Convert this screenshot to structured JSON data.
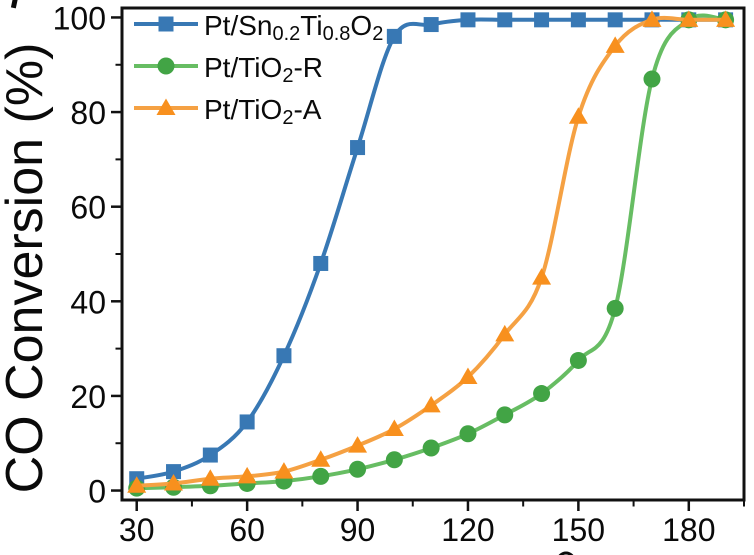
{
  "figure": {
    "y_axis_title": "CO Conversion (%)",
    "background": "#ffffff",
    "axis_color": "#111111"
  },
  "chart_data": {
    "type": "line",
    "title": "",
    "xlabel": "",
    "ylabel": "CO Conversion (%)",
    "x": [
      30,
      40,
      50,
      60,
      70,
      80,
      90,
      100,
      110,
      120,
      130,
      140,
      150,
      160,
      170,
      180,
      190
    ],
    "series": [
      {
        "plain_name": "Pt/Sn0.2Ti0.8O2",
        "label_segments": [
          {
            "t": "Pt/Sn"
          },
          {
            "t": "0.2",
            "sub": true
          },
          {
            "t": "Ti"
          },
          {
            "t": "0.8",
            "sub": true
          },
          {
            "t": "O"
          },
          {
            "t": "2",
            "sub": true
          }
        ],
        "marker": "square",
        "marker_color": "#3878B4",
        "line_color": "#3878B4",
        "values": [
          2.5,
          4,
          7.5,
          14.5,
          28.5,
          48,
          72.5,
          96,
          98.5,
          99.5,
          99.5,
          99.5,
          99.5,
          99.5,
          99.5,
          99.5,
          99.5
        ]
      },
      {
        "plain_name": "Pt/TiO2-R",
        "label_segments": [
          {
            "t": "Pt/TiO"
          },
          {
            "t": "2",
            "sub": true
          },
          {
            "t": "-R"
          }
        ],
        "marker": "circle",
        "marker_color": "#42A445",
        "line_color": "#67BD63",
        "values": [
          0.5,
          0.7,
          1,
          1.5,
          2,
          3,
          4.5,
          6.5,
          9,
          12,
          16,
          20.5,
          27.5,
          38.5,
          87,
          99.5,
          99.5
        ]
      },
      {
        "plain_name": "Pt/TiO2-A",
        "label_segments": [
          {
            "t": "Pt/TiO"
          },
          {
            "t": "2",
            "sub": true
          },
          {
            "t": "-A"
          }
        ],
        "marker": "triangle",
        "marker_color": "#F8901E",
        "line_color": "#F5A143",
        "values": [
          1,
          1.5,
          2.5,
          3,
          4,
          6.5,
          9.5,
          13,
          18,
          24,
          33,
          45,
          79,
          94,
          99.5,
          99.5,
          99.5
        ]
      }
    ],
    "x_ticks": [
      30,
      60,
      90,
      120,
      150,
      180
    ],
    "x_minor_ticks": [
      45,
      75,
      105,
      135,
      165,
      195
    ],
    "y_ticks": [
      0,
      20,
      40,
      60,
      80,
      100
    ],
    "y_minor_ticks": [
      10,
      30,
      50,
      70,
      90
    ],
    "xlim": [
      26,
      195
    ],
    "ylim": [
      -2,
      102
    ],
    "grid": false,
    "legend_position": "upper-left"
  }
}
